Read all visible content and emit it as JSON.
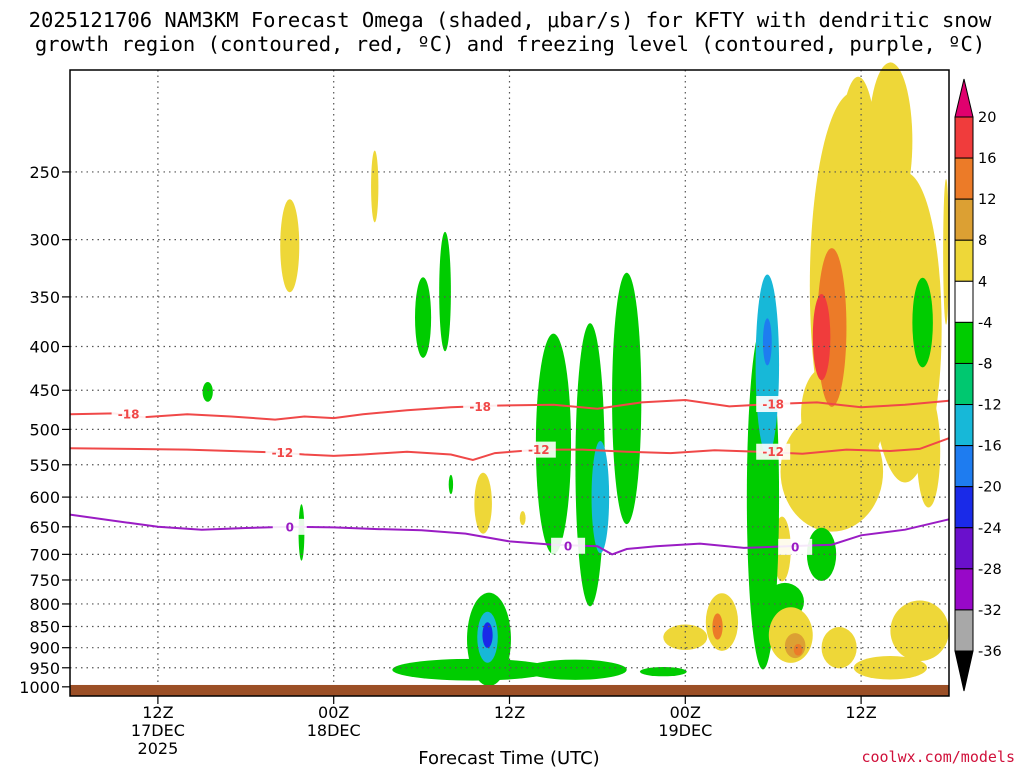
{
  "chart_data": {
    "type": "heatmap",
    "title_line1": "2025121706 NAM3KM Forecast Omega (shaded, μbar/s) for KFTY with dendritic snow",
    "title_line2": "growth region (contoured, red, ºC) and freezing level (contoured, purple, ºC)",
    "xlabel": "Forecast Time (UTC)",
    "credit": "coolwx.com/models",
    "x_range_hours": [
      0,
      60
    ],
    "y_range_hpa": [
      1025,
      190
    ],
    "y_ticks": [
      {
        "p": 250,
        "label": "250"
      },
      {
        "p": 300,
        "label": "300"
      },
      {
        "p": 350,
        "label": "350"
      },
      {
        "p": 400,
        "label": "400"
      },
      {
        "p": 450,
        "label": "450"
      },
      {
        "p": 500,
        "label": "500"
      },
      {
        "p": 550,
        "label": "550"
      },
      {
        "p": 600,
        "label": "600"
      },
      {
        "p": 650,
        "label": "650"
      },
      {
        "p": 700,
        "label": "700"
      },
      {
        "p": 750,
        "label": "750"
      },
      {
        "p": 800,
        "label": "800"
      },
      {
        "p": 850,
        "label": "850"
      },
      {
        "p": 900,
        "label": "900"
      },
      {
        "p": 950,
        "label": "950"
      },
      {
        "p": 1000,
        "label": "1000"
      }
    ],
    "x_ticks": [
      {
        "h": 6,
        "label": "12Z",
        "sub1": "17DEC",
        "sub2": "2025"
      },
      {
        "h": 18,
        "label": "00Z",
        "sub1": "18DEC",
        "sub2": ""
      },
      {
        "h": 30,
        "label": "12Z",
        "sub1": "",
        "sub2": ""
      },
      {
        "h": 42,
        "label": "00Z",
        "sub1": "19DEC",
        "sub2": ""
      },
      {
        "h": 54,
        "label": "12Z",
        "sub1": "",
        "sub2": ""
      }
    ],
    "colorbar": {
      "levels": [
        "20",
        "16",
        "12",
        "8",
        "4",
        "-4",
        "-8",
        "-12",
        "-16",
        "-20",
        "-24",
        "-28",
        "-32",
        "-36"
      ],
      "colors": [
        "#e0006e",
        "#f03c3c",
        "#ec7b28",
        "#dca033",
        "#eed738",
        "#ffffff",
        "#00cc00",
        "#00c870",
        "#17b8d8",
        "#1e7cf0",
        "#1a2ae8",
        "#6a10cc",
        "#9808c8",
        "#a8a8a8",
        "#000000"
      ]
    },
    "contours": [
      {
        "name": "dgz-top",
        "value": -18,
        "label": "-18",
        "color": "#f04848",
        "points": [
          [
            0,
            480
          ],
          [
            3,
            479
          ],
          [
            5,
            484
          ],
          [
            8,
            480
          ],
          [
            11,
            483
          ],
          [
            14,
            487
          ],
          [
            16,
            483
          ],
          [
            18,
            485
          ],
          [
            20,
            480
          ],
          [
            23,
            475
          ],
          [
            26,
            471
          ],
          [
            29,
            469
          ],
          [
            33,
            468
          ],
          [
            36,
            473
          ],
          [
            39,
            465
          ],
          [
            42,
            462
          ],
          [
            45,
            470
          ],
          [
            48,
            467
          ],
          [
            51,
            465
          ],
          [
            54,
            471
          ],
          [
            57,
            468
          ],
          [
            60,
            463
          ]
        ],
        "labels": [
          {
            "h": 4,
            "p": 480
          },
          {
            "h": 28,
            "p": 470
          },
          {
            "h": 48,
            "p": 467
          }
        ]
      },
      {
        "name": "dgz-bottom",
        "value": -12,
        "label": "-12",
        "color": "#f04848",
        "points": [
          [
            0,
            526
          ],
          [
            4,
            527
          ],
          [
            8,
            528
          ],
          [
            11,
            530
          ],
          [
            14,
            532
          ],
          [
            16,
            535
          ],
          [
            18,
            537
          ],
          [
            20,
            535
          ],
          [
            23,
            531
          ],
          [
            26,
            535
          ],
          [
            27.5,
            543
          ],
          [
            29,
            533
          ],
          [
            32,
            528
          ],
          [
            35,
            528
          ],
          [
            38,
            531
          ],
          [
            41,
            533
          ],
          [
            44,
            529
          ],
          [
            47,
            531
          ],
          [
            50,
            534
          ],
          [
            53,
            528
          ],
          [
            56,
            530
          ],
          [
            58,
            527
          ],
          [
            60,
            512
          ]
        ],
        "labels": [
          {
            "h": 14.5,
            "p": 532
          },
          {
            "h": 32,
            "p": 528
          },
          {
            "h": 48,
            "p": 531
          }
        ]
      },
      {
        "name": "freezing-level",
        "value": 0,
        "label": "0",
        "color": "#9a1cc4",
        "points": [
          [
            0,
            629
          ],
          [
            4,
            643
          ],
          [
            6,
            650
          ],
          [
            9,
            655
          ],
          [
            12,
            652
          ],
          [
            15,
            650
          ],
          [
            18,
            651
          ],
          [
            21,
            654
          ],
          [
            24,
            656
          ],
          [
            27,
            662
          ],
          [
            30,
            676
          ],
          [
            33,
            682
          ],
          [
            36,
            685
          ],
          [
            37,
            700
          ],
          [
            38,
            690
          ],
          [
            40,
            685
          ],
          [
            43,
            680
          ],
          [
            46,
            688
          ],
          [
            49,
            685
          ],
          [
            52,
            682
          ],
          [
            54,
            665
          ],
          [
            57,
            655
          ],
          [
            60,
            637
          ]
        ],
        "labels": [
          {
            "h": 15,
            "p": 650
          },
          {
            "h": 34,
            "p": 684
          },
          {
            "h": 49.5,
            "p": 686
          }
        ]
      }
    ],
    "terrain": {
      "color": "#9b4f26",
      "top_hpa": 995
    },
    "omega_features": [
      {
        "h": 9.4,
        "p": 452,
        "rh": 0.35,
        "rp": 12,
        "value": -6
      },
      {
        "h": 15.0,
        "p": 305,
        "rh": 0.65,
        "rp": 38,
        "value": 5
      },
      {
        "h": 20.8,
        "p": 260,
        "rh": 0.25,
        "rp": 25,
        "value": 5
      },
      {
        "h": 15.8,
        "p": 660,
        "rh": 0.2,
        "rp": 50,
        "value": -6
      },
      {
        "h": 24.1,
        "p": 370,
        "rh": 0.55,
        "rp": 40,
        "value": -6
      },
      {
        "h": 25.6,
        "p": 345,
        "rh": 0.4,
        "rp": 55,
        "value": -6
      },
      {
        "h": 26.0,
        "p": 580,
        "rh": 0.15,
        "rp": 15,
        "value": -5
      },
      {
        "h": 28.2,
        "p": 610,
        "rh": 0.6,
        "rp": 50,
        "value": 6
      },
      {
        "h": 30.9,
        "p": 635,
        "rh": 0.2,
        "rp": 12,
        "value": 5
      },
      {
        "h": 28.6,
        "p": 880,
        "rh": 1.5,
        "rp": 110,
        "value": -6
      },
      {
        "h": 28.5,
        "p": 875,
        "rh": 0.7,
        "rp": 60,
        "value": -12
      },
      {
        "h": 28.5,
        "p": 870,
        "rh": 0.35,
        "rp": 30,
        "value": -22
      },
      {
        "h": 27.5,
        "p": 955,
        "rh": 5.5,
        "rp": 28,
        "value": -6
      },
      {
        "h": 34.5,
        "p": 955,
        "rh": 3.5,
        "rp": 26,
        "value": -6
      },
      {
        "h": 33.0,
        "p": 520,
        "rh": 1.2,
        "rp": 150,
        "value": -6
      },
      {
        "h": 35.5,
        "p": 550,
        "rh": 1.0,
        "rp": 200,
        "value": -6
      },
      {
        "h": 36.2,
        "p": 600,
        "rh": 0.6,
        "rp": 90,
        "value": -12
      },
      {
        "h": 38.0,
        "p": 460,
        "rh": 1.0,
        "rp": 150,
        "value": -6
      },
      {
        "h": 40.5,
        "p": 960,
        "rh": 1.6,
        "rp": 12,
        "value": -6
      },
      {
        "h": 42.0,
        "p": 875,
        "rh": 1.5,
        "rp": 30,
        "value": 5
      },
      {
        "h": 44.5,
        "p": 840,
        "rh": 1.1,
        "rp": 65,
        "value": 6
      },
      {
        "h": 44.2,
        "p": 850,
        "rh": 0.35,
        "rp": 30,
        "value": 13
      },
      {
        "h": 47.3,
        "p": 600,
        "rh": 1.1,
        "rp": 260,
        "value": -6
      },
      {
        "h": 47.6,
        "p": 420,
        "rh": 0.8,
        "rp": 100,
        "value": -12
      },
      {
        "h": 47.6,
        "p": 395,
        "rh": 0.3,
        "rp": 25,
        "value": -18
      },
      {
        "h": 48.1,
        "p": 840,
        "rh": 0.6,
        "rp": 25,
        "value": -6
      },
      {
        "h": 47.0,
        "p": 510,
        "rh": 0.3,
        "rp": 60,
        "value": 5
      },
      {
        "h": 48.8,
        "p": 795,
        "rh": 1.3,
        "rp": 40,
        "value": -6
      },
      {
        "h": 48.6,
        "p": 690,
        "rh": 0.6,
        "rp": 60,
        "value": 5
      },
      {
        "h": 49.2,
        "p": 870,
        "rh": 1.5,
        "rp": 65,
        "value": 6
      },
      {
        "h": 49.5,
        "p": 895,
        "rh": 0.7,
        "rp": 30,
        "value": 10
      },
      {
        "h": 49.7,
        "p": 905,
        "rh": 0.3,
        "rp": 14,
        "value": 14
      },
      {
        "h": 51.3,
        "p": 700,
        "rh": 1.0,
        "rp": 50,
        "value": -6
      },
      {
        "h": 52.5,
        "p": 900,
        "rh": 1.2,
        "rp": 50,
        "value": 5
      },
      {
        "h": 58.0,
        "p": 860,
        "rh": 2.0,
        "rp": 70,
        "value": 5
      },
      {
        "h": 56.0,
        "p": 950,
        "rh": 2.5,
        "rp": 30,
        "value": 5
      },
      {
        "h": 53.5,
        "p": 340,
        "rh": 3.0,
        "rp": 200,
        "value": 5
      },
      {
        "h": 52.0,
        "p": 560,
        "rh": 3.5,
        "rp": 90,
        "value": 5
      },
      {
        "h": 57.0,
        "p": 380,
        "rh": 2.5,
        "rp": 150,
        "value": 5
      },
      {
        "h": 56.0,
        "p": 230,
        "rh": 1.5,
        "rp": 60,
        "value": 5
      },
      {
        "h": 53.8,
        "p": 270,
        "rh": 1.5,
        "rp": 100,
        "value": 8
      },
      {
        "h": 53.0,
        "p": 350,
        "rh": 2.3,
        "rp": 160,
        "value": 7
      },
      {
        "h": 52.0,
        "p": 380,
        "rh": 1.0,
        "rp": 80,
        "value": 13
      },
      {
        "h": 51.3,
        "p": 390,
        "rh": 0.6,
        "rp": 45,
        "value": 17
      },
      {
        "h": 51.5,
        "p": 480,
        "rh": 1.6,
        "rp": 60,
        "value": 8
      },
      {
        "h": 58.6,
        "p": 530,
        "rh": 0.8,
        "rp": 80,
        "value": 5
      },
      {
        "h": 58.2,
        "p": 375,
        "rh": 0.7,
        "rp": 45,
        "value": -6
      },
      {
        "h": 59.8,
        "p": 310,
        "rh": 0.2,
        "rp": 60,
        "value": 5
      }
    ]
  }
}
